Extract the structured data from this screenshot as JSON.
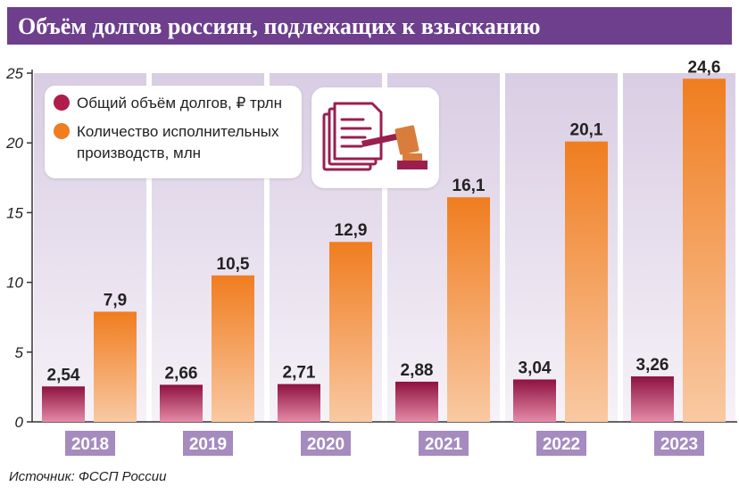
{
  "title": "Объём долгов россиян, подлежащих к взысканию",
  "source": "Источник: ФССП России",
  "colors": {
    "title_bg": "#6e3f8c",
    "debt": "#b01c4c",
    "proceedings": "#f07d1f",
    "plot_bg": "#e9e1ee",
    "year_label_bg": "#a58bc0"
  },
  "icon": "documents-and-gavel-icon",
  "chart_data": {
    "type": "bar",
    "title": "Объём долгов россиян, подлежащих к взысканию",
    "categories": [
      "2018",
      "2019",
      "2020",
      "2021",
      "2022",
      "2023"
    ],
    "series": [
      {
        "name": "Общий объём долгов, ₽ трлн",
        "values": [
          2.54,
          2.66,
          2.71,
          2.88,
          3.04,
          3.26
        ],
        "labels": [
          "2,54",
          "2,66",
          "2,71",
          "2,88",
          "3,04",
          "3,26"
        ],
        "color": "#b01c4c"
      },
      {
        "name": "Количество исполнительных производств, млн",
        "values": [
          7.9,
          10.5,
          12.9,
          16.1,
          20.1,
          24.6
        ],
        "labels": [
          "7,9",
          "10,5",
          "12,9",
          "16,1",
          "20,1",
          "24,6"
        ],
        "color": "#f07d1f"
      }
    ],
    "ylim": [
      0,
      25
    ],
    "yticks": [
      0,
      5,
      10,
      15,
      20,
      25
    ],
    "grid": false,
    "legend_placement": "top-left"
  }
}
